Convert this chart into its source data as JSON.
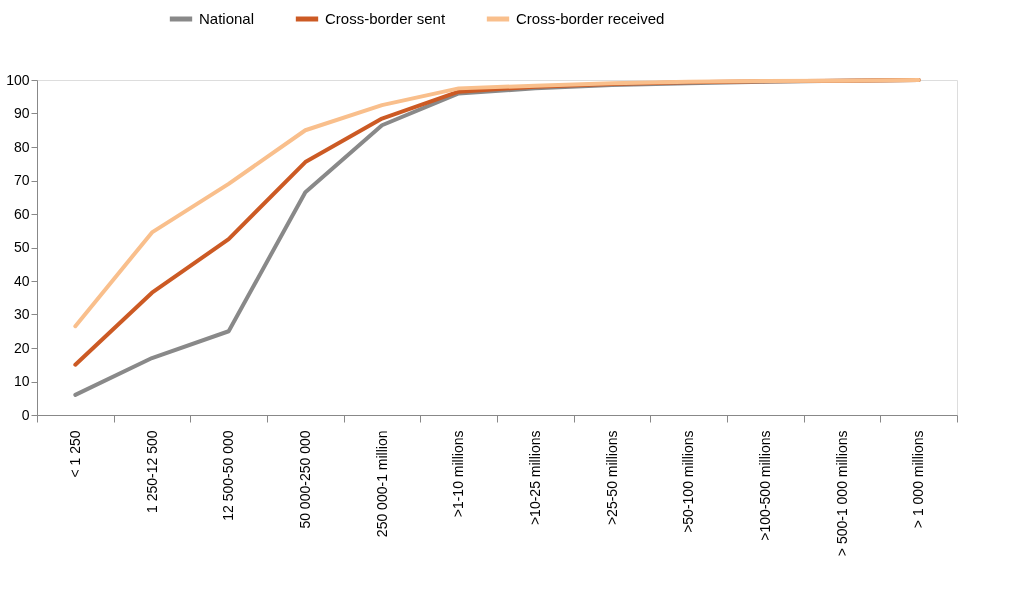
{
  "chart_data": {
    "type": "line",
    "categories": [
      "< 1 250",
      "1 250-12 500",
      "12 500-50 000",
      "50 000-250 000",
      "250 000-1 million",
      ">1-10 millions",
      ">10-25 millions",
      ">25-50 millions",
      ">50-100 millions",
      ">100-500 millions",
      "> 500-1 000 millions",
      "> 1 000 millions"
    ],
    "series": [
      {
        "name": "National",
        "color": "#898989",
        "values": [
          6,
          17,
          25,
          66.5,
          86.5,
          96,
          97.5,
          98.5,
          99,
          99.5,
          99.8,
          100
        ]
      },
      {
        "name": "Cross-border sent",
        "color": "#cc5a24",
        "values": [
          15,
          36.5,
          52.5,
          75.5,
          88.5,
          96.5,
          98,
          98.8,
          99.3,
          99.6,
          99.8,
          100
        ]
      },
      {
        "name": "Cross-border received",
        "color": "#f9bf8c",
        "values": [
          26.5,
          54.5,
          69,
          85,
          92.5,
          97.5,
          98.3,
          99,
          99.5,
          99.7,
          99.8,
          100
        ]
      }
    ],
    "ylim": [
      0,
      100
    ],
    "yticks": [
      0,
      10,
      20,
      30,
      40,
      50,
      60,
      70,
      80,
      90,
      100
    ],
    "grid": false,
    "legend": "top",
    "marker": "none",
    "line_style": "solid"
  }
}
